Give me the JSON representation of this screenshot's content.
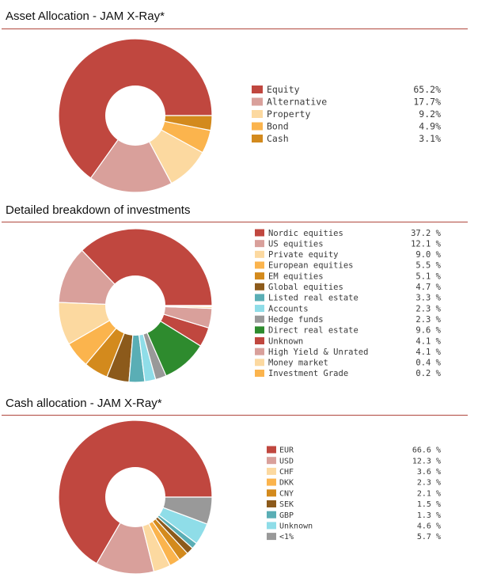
{
  "chart_data": [
    {
      "type": "pie",
      "title": "Asset Allocation - JAM X-Ray*",
      "categories": [
        "Equity",
        "Alternative",
        "Property",
        "Bond",
        "Cash"
      ],
      "values": [
        65.2,
        17.7,
        9.2,
        4.9,
        3.1
      ],
      "value_labels": [
        "65.2%",
        "17.7%",
        "9.2%",
        "4.9%",
        "3.1%"
      ],
      "colors": [
        "#c0473f",
        "#d9a09b",
        "#fcd9a0",
        "#fbb44d",
        "#d38a1d"
      ],
      "legend_position": "right"
    },
    {
      "type": "pie",
      "title": "Detailed breakdown of investments",
      "categories": [
        "Nordic equities",
        "US equities",
        "Private equity",
        "European equities",
        "EM equities",
        "Global equities",
        "Listed real estate",
        "Accounts",
        "Hedge funds",
        "Direct real estate",
        "Unknown",
        "High Yield & Unrated",
        "Money market",
        "Investment Grade"
      ],
      "values": [
        37.2,
        12.1,
        9.0,
        5.5,
        5.1,
        4.7,
        3.3,
        2.3,
        2.3,
        9.6,
        4.1,
        4.1,
        0.4,
        0.2
      ],
      "value_labels": [
        "37.2 %",
        "12.1 %",
        "9.0 %",
        "5.5 %",
        "5.1 %",
        "4.7 %",
        "3.3 %",
        "2.3 %",
        "2.3 %",
        "9.6 %",
        "4.1 %",
        "4.1 %",
        "0.4 %",
        "0.2 %"
      ],
      "colors": [
        "#c0473f",
        "#d9a09b",
        "#fcd9a0",
        "#fbb44d",
        "#d38a1d",
        "#8c5a1b",
        "#5aaeb5",
        "#8fdde8",
        "#999999",
        "#2e8b2e",
        "#c0473f",
        "#d9a09b",
        "#fcd9a0",
        "#fbb44d"
      ],
      "legend_position": "right"
    },
    {
      "type": "pie",
      "title": "Cash allocation - JAM X-Ray*",
      "categories": [
        "EUR",
        "USD",
        "CHF",
        "DKK",
        "CNY",
        "SEK",
        "GBP",
        "Unknown",
        "<1%"
      ],
      "values": [
        66.6,
        12.3,
        3.6,
        2.3,
        2.1,
        1.5,
        1.3,
        4.6,
        5.7
      ],
      "value_labels": [
        "66.6 %",
        "12.3 %",
        "3.6 %",
        "2.3 %",
        "2.1 %",
        "1.5 %",
        "1.3 %",
        "4.6 %",
        "5.7 %"
      ],
      "colors": [
        "#c0473f",
        "#d9a09b",
        "#fcd9a0",
        "#fbb44d",
        "#d38a1d",
        "#8c5a1b",
        "#5aaeb5",
        "#8fdde8",
        "#999999"
      ],
      "legend_position": "right"
    }
  ]
}
